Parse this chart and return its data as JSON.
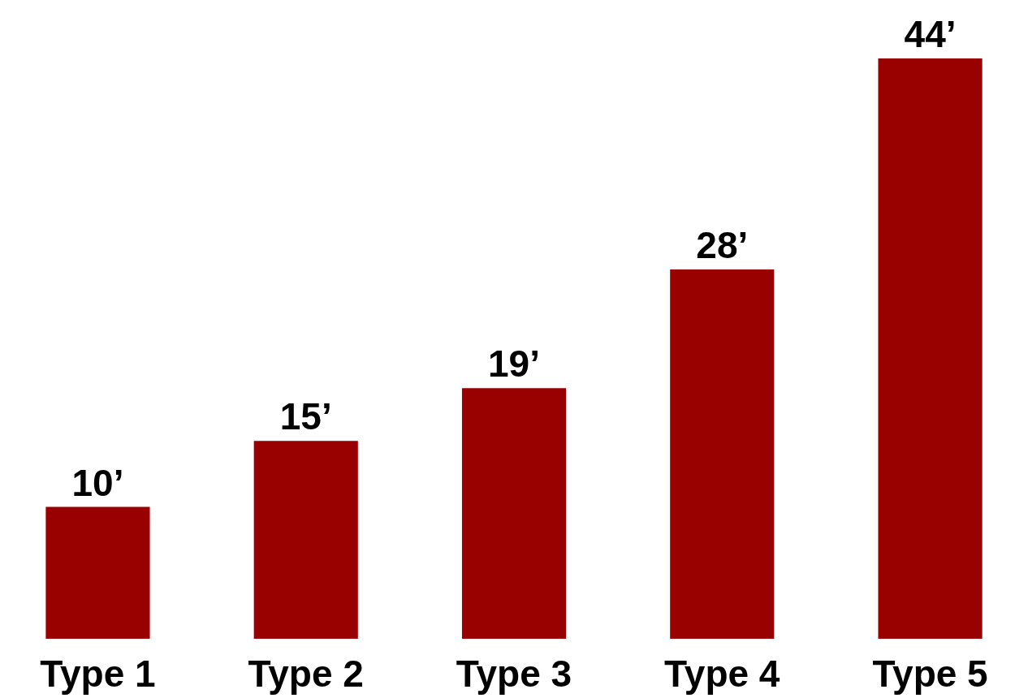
{
  "chart_data": {
    "type": "bar",
    "categories": [
      "Type 1",
      "Type 2",
      "Type 3",
      "Type 4",
      "Type 5"
    ],
    "values": [
      10,
      15,
      19,
      28,
      44
    ],
    "value_labels": [
      "10’",
      "15’",
      "19’",
      "28’",
      "44’"
    ],
    "color": "#990000"
  }
}
